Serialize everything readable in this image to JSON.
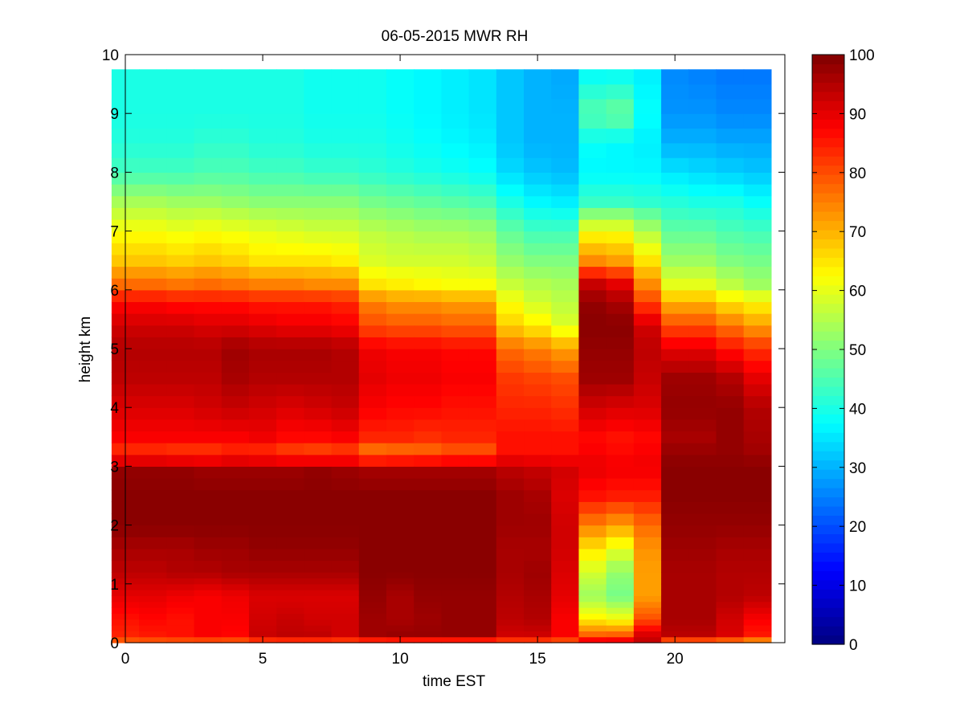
{
  "chart_data": {
    "type": "heatmap",
    "title": "06-05-2015 MWR RH",
    "xlabel": "time EST",
    "ylabel": "height km",
    "xlim": [
      0,
      24
    ],
    "ylim": [
      0,
      10
    ],
    "x_ticks": [
      0,
      5,
      10,
      15,
      20
    ],
    "y_ticks": [
      0,
      1,
      2,
      3,
      4,
      5,
      6,
      7,
      8,
      9,
      10
    ],
    "colorbar": {
      "min": 0,
      "max": 100,
      "ticks": [
        0,
        10,
        20,
        30,
        40,
        50,
        60,
        70,
        80,
        90,
        100
      ],
      "colormap": "jet"
    },
    "time_bins": [
      0,
      1,
      2,
      3,
      4,
      5,
      6,
      7,
      8,
      9,
      10,
      11,
      12,
      13,
      14,
      15,
      16,
      17,
      18,
      19,
      20,
      21,
      22,
      23
    ],
    "height_levels_km": [
      0.0,
      0.1,
      0.2,
      0.3,
      0.4,
      0.5,
      0.6,
      0.7,
      0.8,
      0.9,
      1.0,
      1.1,
      1.2,
      1.4,
      1.6,
      1.8,
      2.0,
      2.2,
      2.4,
      2.6,
      2.8,
      3.0,
      3.2,
      3.4,
      3.6,
      3.8,
      4.0,
      4.2,
      4.4,
      4.6,
      4.8,
      5.0,
      5.2,
      5.4,
      5.6,
      5.8,
      6.0,
      6.2,
      6.4,
      6.6,
      6.8,
      7.0,
      7.2,
      7.4,
      7.6,
      7.8,
      8.0,
      8.25,
      8.5,
      8.75,
      9.0,
      9.25,
      9.5,
      9.75
    ],
    "control_heights_km": [
      0.0,
      0.1,
      0.4,
      0.8,
      1.2,
      1.6,
      2.0,
      2.5,
      3.0,
      3.2,
      3.5,
      4.0,
      4.5,
      5.0,
      5.4,
      5.8,
      6.1,
      6.5,
      7.0,
      7.5,
      8.0,
      8.5,
      9.0,
      9.75
    ],
    "rh_percent_profiles": [
      [
        75,
        84,
        86,
        90,
        94,
        96,
        99,
        99,
        98,
        82,
        88,
        91,
        94,
        95,
        92,
        87,
        77,
        68,
        62,
        54,
        44,
        41,
        40,
        40
      ],
      [
        75,
        85,
        87,
        90,
        94,
        96,
        99,
        99,
        98,
        82,
        88,
        91,
        94,
        95,
        92,
        87,
        77,
        68,
        62,
        54,
        44,
        41,
        40,
        40
      ],
      [
        75,
        86,
        86,
        89,
        95,
        96,
        99,
        99,
        98,
        81,
        88,
        91,
        94,
        95,
        92,
        86,
        76,
        67,
        61,
        53,
        44,
        41,
        40,
        40
      ],
      [
        74,
        88,
        88,
        88,
        95,
        97,
        99,
        99,
        97,
        81,
        88,
        92,
        94,
        95,
        91,
        86,
        77,
        68,
        62,
        53,
        45,
        42,
        40,
        40
      ],
      [
        74,
        87,
        88,
        89,
        96,
        97,
        99,
        99,
        97,
        83,
        88,
        93,
        96,
        97,
        91,
        86,
        76,
        67,
        61,
        52,
        45,
        42,
        40,
        40
      ],
      [
        74,
        93,
        92,
        91,
        96,
        98,
        99,
        99,
        97,
        82,
        89,
        92,
        95,
        96,
        90,
        85,
        75,
        65,
        60,
        51,
        44,
        41,
        40,
        40
      ],
      [
        74,
        94,
        93,
        91,
        96,
        98,
        99,
        99,
        97,
        80,
        87,
        91,
        95,
        96,
        89,
        85,
        75,
        65,
        59,
        51,
        44,
        41,
        40,
        40
      ],
      [
        74,
        94,
        92,
        91,
        96,
        98,
        99,
        99,
        98,
        79,
        87,
        92,
        95,
        96,
        89,
        85,
        74,
        65,
        58,
        51,
        43,
        40,
        39,
        39
      ],
      [
        74,
        92,
        92,
        91,
        96,
        98,
        99,
        99,
        97,
        80,
        88,
        93,
        95,
        95,
        88,
        84,
        74,
        64,
        58,
        51,
        43,
        40,
        39,
        39
      ],
      [
        73,
        97,
        97,
        98,
        99,
        99,
        99,
        99,
        96,
        74,
        84,
        88,
        90,
        89,
        80,
        75,
        65,
        59,
        56,
        49,
        42,
        40,
        39,
        39
      ],
      [
        73,
        98,
        96,
        96,
        99,
        99,
        99,
        99,
        96,
        75,
        84,
        87,
        89,
        88,
        79,
        73,
        64,
        58,
        55,
        48,
        41,
        39,
        38,
        38
      ],
      [
        73,
        98,
        97,
        98,
        99,
        99,
        99,
        99,
        96,
        76,
        83,
        87,
        89,
        88,
        79,
        73,
        63,
        58,
        54,
        47,
        40,
        38,
        37,
        37
      ],
      [
        73,
        98,
        98,
        98,
        99,
        99,
        99,
        99,
        96,
        78,
        84,
        86,
        88,
        87,
        78,
        72,
        62,
        58,
        54,
        46,
        39,
        37,
        36,
        36
      ],
      [
        73,
        98,
        98,
        98,
        99,
        99,
        99,
        99,
        96,
        78,
        84,
        86,
        88,
        87,
        78,
        72,
        62,
        57,
        53,
        45,
        38,
        36,
        35,
        35
      ],
      [
        74,
        92,
        94,
        95,
        96,
        96,
        97,
        97,
        94,
        86,
        86,
        84,
        82,
        77,
        67,
        62,
        57,
        52,
        47,
        40,
        34,
        32,
        32,
        32
      ],
      [
        74,
        92,
        95,
        96,
        97,
        96,
        97,
        96,
        93,
        86,
        86,
        84,
        81,
        75,
        64,
        58,
        55,
        50,
        44,
        37,
        32,
        30,
        30,
        30
      ],
      [
        74,
        88,
        88,
        90,
        91,
        92,
        92,
        91,
        92,
        86,
        86,
        83,
        80,
        72,
        59,
        56,
        54,
        50,
        44,
        36,
        31,
        30,
        30,
        29
      ],
      [
        95,
        80,
        64,
        53,
        58,
        65,
        75,
        86,
        90,
        88,
        87,
        92,
        97,
        98,
        99,
        98,
        93,
        74,
        62,
        43,
        37,
        38,
        46,
        37
      ],
      [
        95,
        81,
        62,
        49,
        52,
        60,
        72,
        85,
        89,
        87,
        86,
        91,
        97,
        98,
        99,
        96,
        90,
        72,
        62,
        43,
        37,
        37,
        48,
        37
      ],
      [
        93,
        93,
        80,
        72,
        72,
        73,
        77,
        85,
        89,
        88,
        87,
        91,
        93,
        94,
        92,
        81,
        74,
        65,
        55,
        42,
        37,
        36,
        38,
        36
      ],
      [
        68,
        94,
        96,
        96,
        96,
        97,
        98,
        99,
        99,
        98,
        96,
        98,
        97,
        90,
        80,
        70,
        60,
        53,
        47,
        41,
        35,
        30,
        27,
        26
      ],
      [
        68,
        94,
        96,
        96,
        96,
        97,
        98,
        99,
        99,
        98,
        96,
        98,
        97,
        90,
        80,
        70,
        60,
        53,
        47,
        40,
        34,
        30,
        27,
        25
      ],
      [
        67,
        91,
        92,
        95,
        95,
        96,
        98,
        99,
        99,
        98,
        98,
        98,
        95,
        86,
        76,
        65,
        56,
        50,
        45,
        40,
        33,
        29,
        26,
        24
      ],
      [
        66,
        85,
        88,
        94,
        95,
        96,
        98,
        99,
        99,
        97,
        96,
        95,
        90,
        83,
        72,
        63,
        53,
        49,
        44,
        38,
        32,
        29,
        26,
        24
      ]
    ]
  }
}
